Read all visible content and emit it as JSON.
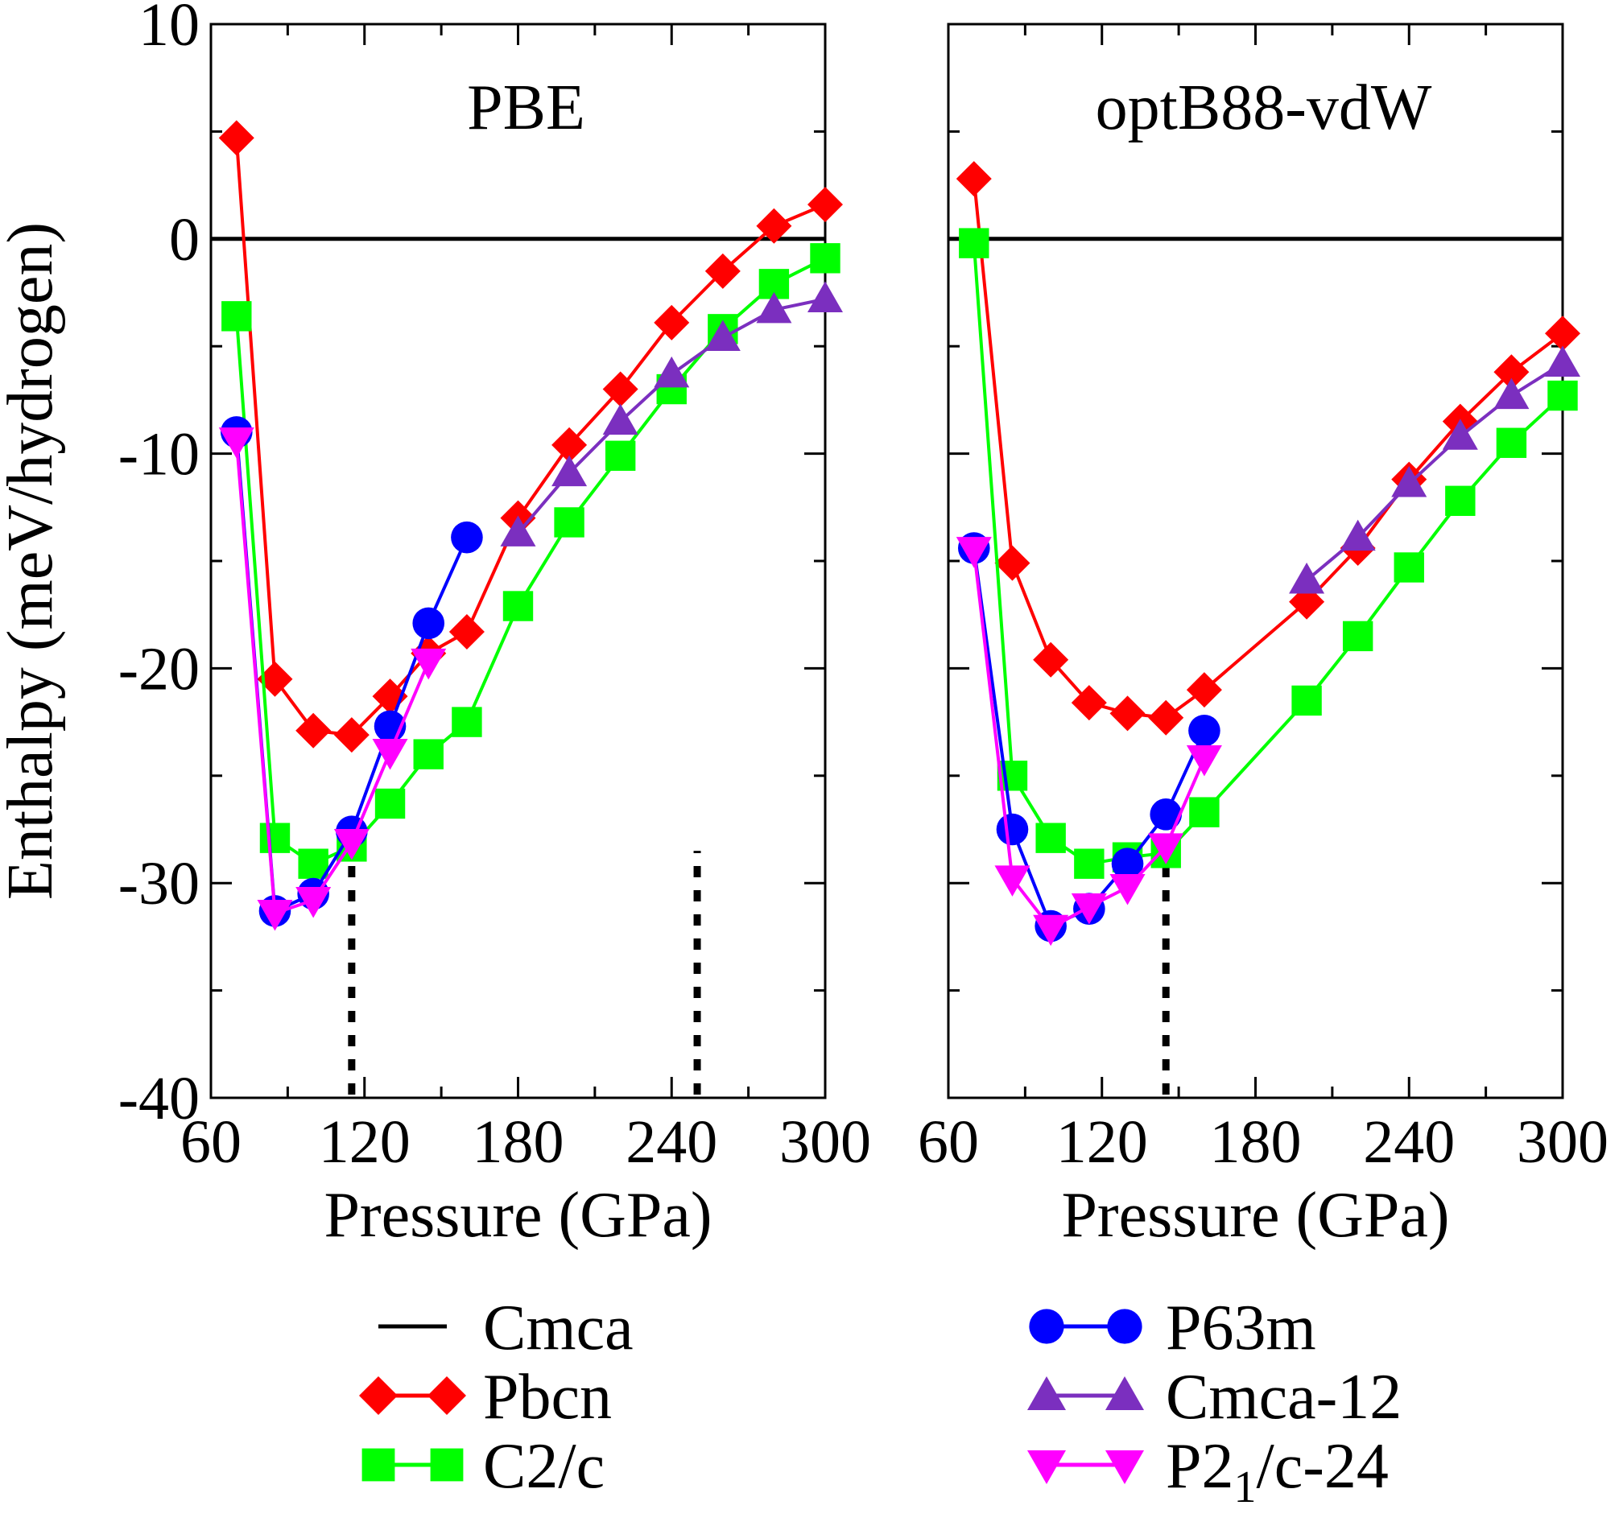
{
  "chart_data": [
    {
      "type": "line",
      "title": "PBE",
      "xlabel": "Pressure (GPa)",
      "ylabel": "Enthalpy (meV/hydrogen)",
      "xlim": [
        60,
        300
      ],
      "ylim": [
        -40,
        10
      ],
      "xticks": [
        60,
        120,
        180,
        240,
        300
      ],
      "yticks": [
        10,
        0,
        -10,
        -20,
        -30,
        -40
      ],
      "grid": false,
      "vlines": [
        115,
        250
      ],
      "series": [
        {
          "name": "Cmca",
          "style": "hline",
          "color": "#000000",
          "x": [
            60,
            300
          ],
          "y": [
            0,
            0
          ]
        },
        {
          "name": "Pbcn",
          "marker": "diamond",
          "color": "#ff0000",
          "x": [
            70,
            85,
            100,
            115,
            130,
            145,
            160,
            180,
            200,
            220,
            240,
            260,
            280,
            300
          ],
          "y": [
            4.7,
            -20.5,
            -22.9,
            -23.1,
            -21.3,
            -19.3,
            -18.3,
            -13.0,
            -9.6,
            -7.0,
            -3.9,
            -1.5,
            0.6,
            1.6
          ]
        },
        {
          "name": "C2/c",
          "marker": "square",
          "color": "#00ff00",
          "x": [
            70,
            85,
            100,
            115,
            130,
            145,
            160,
            180,
            200,
            220,
            240,
            260,
            280,
            300
          ],
          "y": [
            -3.6,
            -27.9,
            -29.1,
            -28.3,
            -26.3,
            -24.0,
            -22.5,
            -17.1,
            -13.2,
            -10.1,
            -7.0,
            -4.2,
            -2.1,
            -0.9
          ]
        },
        {
          "name": "P63m",
          "marker": "circle",
          "color": "#0000ff",
          "x": [
            70,
            85,
            100,
            115,
            130,
            145,
            160
          ],
          "y": [
            -9.0,
            -31.3,
            -30.5,
            -27.6,
            -22.7,
            -17.9,
            -13.9
          ]
        },
        {
          "name": "Cmca-12",
          "marker": "triangle-up",
          "color": "#7b2fbf",
          "x": [
            180,
            200,
            220,
            240,
            260,
            280,
            300
          ],
          "y": [
            -13.7,
            -10.9,
            -8.5,
            -6.3,
            -4.6,
            -3.3,
            -2.8
          ]
        },
        {
          "name": "P2",
          "name_sub": "1",
          "name_rest": "/c-24",
          "marker": "triangle-down",
          "color": "#ff00ff",
          "x": [
            70,
            85,
            100,
            115,
            130,
            145
          ],
          "y": [
            -9.4,
            -31.4,
            -30.8,
            -28.1,
            -23.9,
            -19.7
          ]
        }
      ]
    },
    {
      "type": "line",
      "title": "optB88-vdW",
      "xlabel": "Pressure (GPa)",
      "ylabel": "",
      "xlim": [
        60,
        300
      ],
      "ylim": [
        -40,
        10
      ],
      "xticks": [
        60,
        120,
        180,
        240,
        300
      ],
      "yticks": [],
      "grid": false,
      "vlines": [
        145
      ],
      "series": [
        {
          "name": "Cmca",
          "style": "hline",
          "color": "#000000",
          "x": [
            60,
            300
          ],
          "y": [
            0,
            0
          ]
        },
        {
          "name": "Pbcn",
          "marker": "diamond",
          "color": "#ff0000",
          "x": [
            70,
            85,
            100,
            115,
            130,
            145,
            160,
            200,
            220,
            240,
            260,
            280,
            300
          ],
          "y": [
            2.8,
            -15.1,
            -19.6,
            -21.6,
            -22.1,
            -22.3,
            -21.0,
            -16.9,
            -14.4,
            -11.2,
            -8.5,
            -6.2,
            -4.4
          ]
        },
        {
          "name": "C2/c",
          "marker": "square",
          "color": "#00ff00",
          "x": [
            70,
            85,
            100,
            115,
            130,
            145,
            160,
            200,
            220,
            240,
            260,
            280,
            300
          ],
          "y": [
            -0.2,
            -25.0,
            -27.9,
            -29.1,
            -28.8,
            -28.6,
            -26.7,
            -21.5,
            -18.5,
            -15.3,
            -12.2,
            -9.5,
            -7.3
          ]
        },
        {
          "name": "P63m",
          "marker": "circle",
          "color": "#0000ff",
          "x": [
            70,
            85,
            100,
            115,
            130,
            145,
            160
          ],
          "y": [
            -14.4,
            -27.5,
            -32.0,
            -31.2,
            -29.1,
            -26.8,
            -22.9
          ]
        },
        {
          "name": "Cmca-12",
          "marker": "triangle-up",
          "color": "#7b2fbf",
          "x": [
            200,
            220,
            240,
            260,
            280,
            300
          ],
          "y": [
            -15.9,
            -13.9,
            -11.4,
            -9.2,
            -7.3,
            -5.8
          ]
        },
        {
          "name": "P2",
          "name_sub": "1",
          "name_rest": "/c-24",
          "marker": "triangle-down",
          "color": "#ff00ff",
          "x": [
            70,
            85,
            100,
            115,
            130,
            145,
            160
          ],
          "y": [
            -14.5,
            -29.8,
            -32.1,
            -31.1,
            -30.2,
            -28.3,
            -24.2
          ]
        }
      ]
    }
  ],
  "legend": {
    "placement": "bottom",
    "entries": [
      {
        "name": "Cmca",
        "marker": "none",
        "color": "#000000"
      },
      {
        "name": "Pbcn",
        "marker": "diamond",
        "color": "#ff0000"
      },
      {
        "name": "C2/c",
        "marker": "square",
        "color": "#00ff00"
      },
      {
        "name": "P63m",
        "marker": "circle",
        "color": "#0000ff"
      },
      {
        "name": "Cmca-12",
        "marker": "triangle-up",
        "color": "#7b2fbf"
      },
      {
        "name": "P2",
        "name_sub": "1",
        "name_rest": "/c-24",
        "marker": "triangle-down",
        "color": "#ff00ff"
      }
    ]
  }
}
